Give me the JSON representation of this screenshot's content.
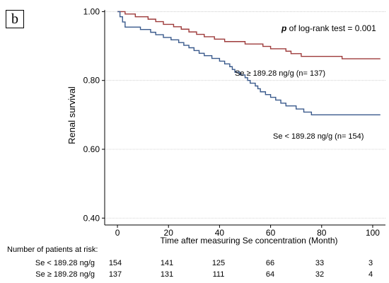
{
  "panel_label": "b",
  "risk_table": {
    "title": "Number of patients at risk:",
    "rows": [
      {
        "label": "Se < 189.28 ng/g",
        "values": [
          "154",
          "141",
          "125",
          "66",
          "33",
          "3"
        ]
      },
      {
        "label": "Se ≥ 189.28 ng/g",
        "values": [
          "137",
          "131",
          "111",
          "64",
          "32",
          "4"
        ]
      }
    ]
  },
  "chart_data": {
    "type": "line",
    "step": true,
    "ylabel": "Renal survival",
    "xlabel": "Time after measuring Se concentration (Month)",
    "xlim": [
      -5,
      105
    ],
    "ylim": [
      0.38,
      1.005
    ],
    "xticks": [
      0,
      20,
      40,
      60,
      80,
      100
    ],
    "yticks": [
      0.4,
      0.6,
      0.8,
      1.0
    ],
    "ytick_labels": [
      "0.40",
      "0.60",
      "0.80",
      "1.00"
    ],
    "grid": true,
    "test_annotation": {
      "italic": "p",
      "text": " of log-rank test = 0.001"
    },
    "colors": {
      "low_se": "#3a5a8c",
      "high_se": "#9e3b3b"
    },
    "series": [
      {
        "name": "Se ≥ 189.28 ng/g (n= 137)",
        "color": "#9e3b3b",
        "points": [
          [
            0,
            1.0
          ],
          [
            3,
            0.993
          ],
          [
            7,
            0.985
          ],
          [
            12,
            0.978
          ],
          [
            15,
            0.971
          ],
          [
            18,
            0.963
          ],
          [
            22,
            0.956
          ],
          [
            25,
            0.949
          ],
          [
            28,
            0.941
          ],
          [
            31,
            0.934
          ],
          [
            34,
            0.927
          ],
          [
            38,
            0.92
          ],
          [
            42,
            0.913
          ],
          [
            50,
            0.906
          ],
          [
            57,
            0.899
          ],
          [
            60,
            0.892
          ],
          [
            66,
            0.885
          ],
          [
            68,
            0.878
          ],
          [
            72,
            0.87
          ],
          [
            88,
            0.863
          ],
          [
            103,
            0.863
          ]
        ]
      },
      {
        "name": "Se < 189.28 ng/g (n= 154)",
        "color": "#3a5a8c",
        "points": [
          [
            0,
            1.0
          ],
          [
            1,
            0.985
          ],
          [
            2,
            0.97
          ],
          [
            3,
            0.955
          ],
          [
            9,
            0.948
          ],
          [
            13,
            0.94
          ],
          [
            15,
            0.933
          ],
          [
            18,
            0.925
          ],
          [
            21,
            0.918
          ],
          [
            24,
            0.91
          ],
          [
            26,
            0.902
          ],
          [
            28,
            0.895
          ],
          [
            30,
            0.887
          ],
          [
            32,
            0.879
          ],
          [
            34,
            0.872
          ],
          [
            37,
            0.864
          ],
          [
            40,
            0.856
          ],
          [
            42,
            0.848
          ],
          [
            44,
            0.84
          ],
          [
            45,
            0.832
          ],
          [
            46,
            0.824
          ],
          [
            48,
            0.816
          ],
          [
            50,
            0.808
          ],
          [
            51,
            0.8
          ],
          [
            52,
            0.792
          ],
          [
            54,
            0.784
          ],
          [
            55,
            0.776
          ],
          [
            56,
            0.767
          ],
          [
            58,
            0.759
          ],
          [
            60,
            0.751
          ],
          [
            62,
            0.743
          ],
          [
            64,
            0.734
          ],
          [
            66,
            0.726
          ],
          [
            70,
            0.717
          ],
          [
            73,
            0.708
          ],
          [
            76,
            0.7
          ],
          [
            88,
            0.7
          ],
          [
            103,
            0.7
          ]
        ]
      }
    ]
  }
}
